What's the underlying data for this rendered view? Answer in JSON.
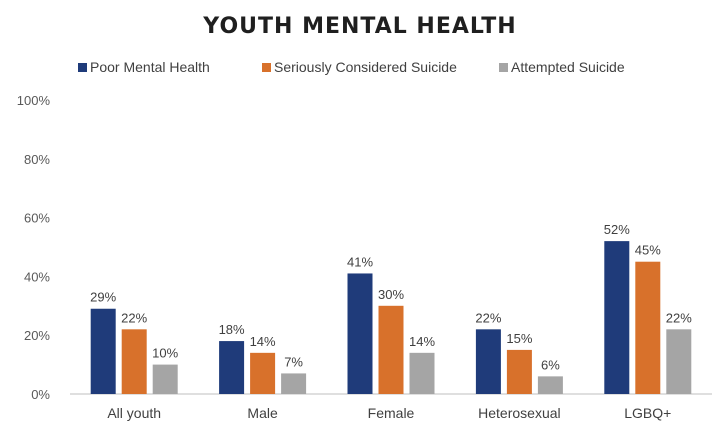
{
  "chart_data": {
    "type": "bar",
    "title": "YOUTH MENTAL HEALTH",
    "xlabel": "",
    "ylabel": "",
    "categories": [
      "All youth",
      "Male",
      "Female",
      "Heterosexual",
      "LGBQ+"
    ],
    "series": [
      {
        "name": "Poor Mental Health",
        "color": "#1f3b7a",
        "values": [
          29,
          18,
          41,
          22,
          52
        ]
      },
      {
        "name": "Seriously Considered Suicide",
        "color": "#d8712b",
        "values": [
          22,
          14,
          30,
          15,
          45
        ]
      },
      {
        "name": "Attempted Suicide",
        "color": "#a5a5a5",
        "values": [
          10,
          7,
          14,
          6,
          22
        ]
      }
    ],
    "value_suffix": "%",
    "ylim": [
      0,
      100
    ],
    "yticks": [
      "0%",
      "20%",
      "40%",
      "60%",
      "80%",
      "100%"
    ],
    "grid": false,
    "legend_position": "top"
  }
}
